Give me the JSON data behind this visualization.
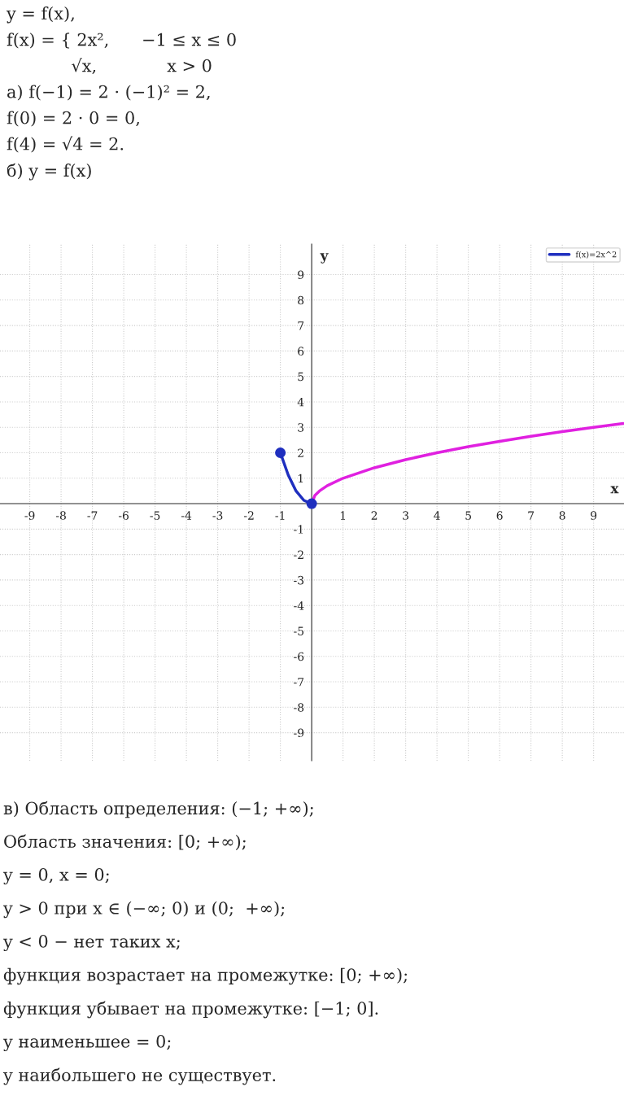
{
  "chart_data": {
    "type": "line",
    "title": "y = f(x),\nf(x) = { 2x²,      −1 ≤ x ≤ 0\n            √x,             x > 0\nа) f(−1) = 2 · (−1)² = 2,\nf(0) = 2 · 0 = 0,\nf(4) = √4 = 2.\nб) y = f(x)",
    "annotations": [
      "в) Область определения: (−1; +∞);",
      "Область значения: [0; +∞);",
      "y = 0, x = 0;",
      "y > 0 при x ∈ (−∞; 0) и (0;  +∞);",
      "y < 0 − нет таких x;",
      "функция возрастает на промежутке: [0; +∞);",
      "функция убывает на промежутке: [−1; 0].",
      "y наименьшее = 0;",
      "y наибольшего не существует."
    ],
    "xlabel": "x",
    "ylabel": "y",
    "series": [
      {
        "name": "f(x)=2x^2",
        "color": "#1f2fbf",
        "x": [
          -1,
          -0.75,
          -0.5,
          -0.25,
          0
        ],
        "values": [
          2,
          1.13,
          0.5,
          0.13,
          0
        ]
      },
      {
        "color": "#e020e0",
        "x": [
          0,
          0.1,
          0.25,
          0.5,
          1,
          2,
          3,
          4,
          5,
          6,
          7,
          8,
          9,
          9.95
        ],
        "values": [
          0,
          0.32,
          0.5,
          0.71,
          1,
          1.41,
          1.73,
          2,
          2.24,
          2.45,
          2.65,
          2.83,
          3,
          3.15
        ]
      },
      {
        "type": "scatter",
        "marker": "circle",
        "color": "#1f2fbf",
        "x": [
          -1,
          0
        ],
        "values": [
          2,
          0
        ]
      }
    ],
    "xlim": [
      -9.95,
      9.97
    ],
    "ylim": [
      -10.1,
      10.2
    ],
    "xticks": [
      -9,
      -8,
      -7,
      -6,
      -5,
      -4,
      -3,
      -2,
      -1,
      1,
      2,
      3,
      4,
      5,
      6,
      7,
      8,
      9
    ],
    "yticks": [
      -9,
      -8,
      -7,
      -6,
      -5,
      -4,
      -3,
      -2,
      -1,
      1,
      2,
      3,
      4,
      5,
      6,
      7,
      8,
      9
    ],
    "grid": true,
    "legend": "top right",
    "line_style": "solid"
  }
}
